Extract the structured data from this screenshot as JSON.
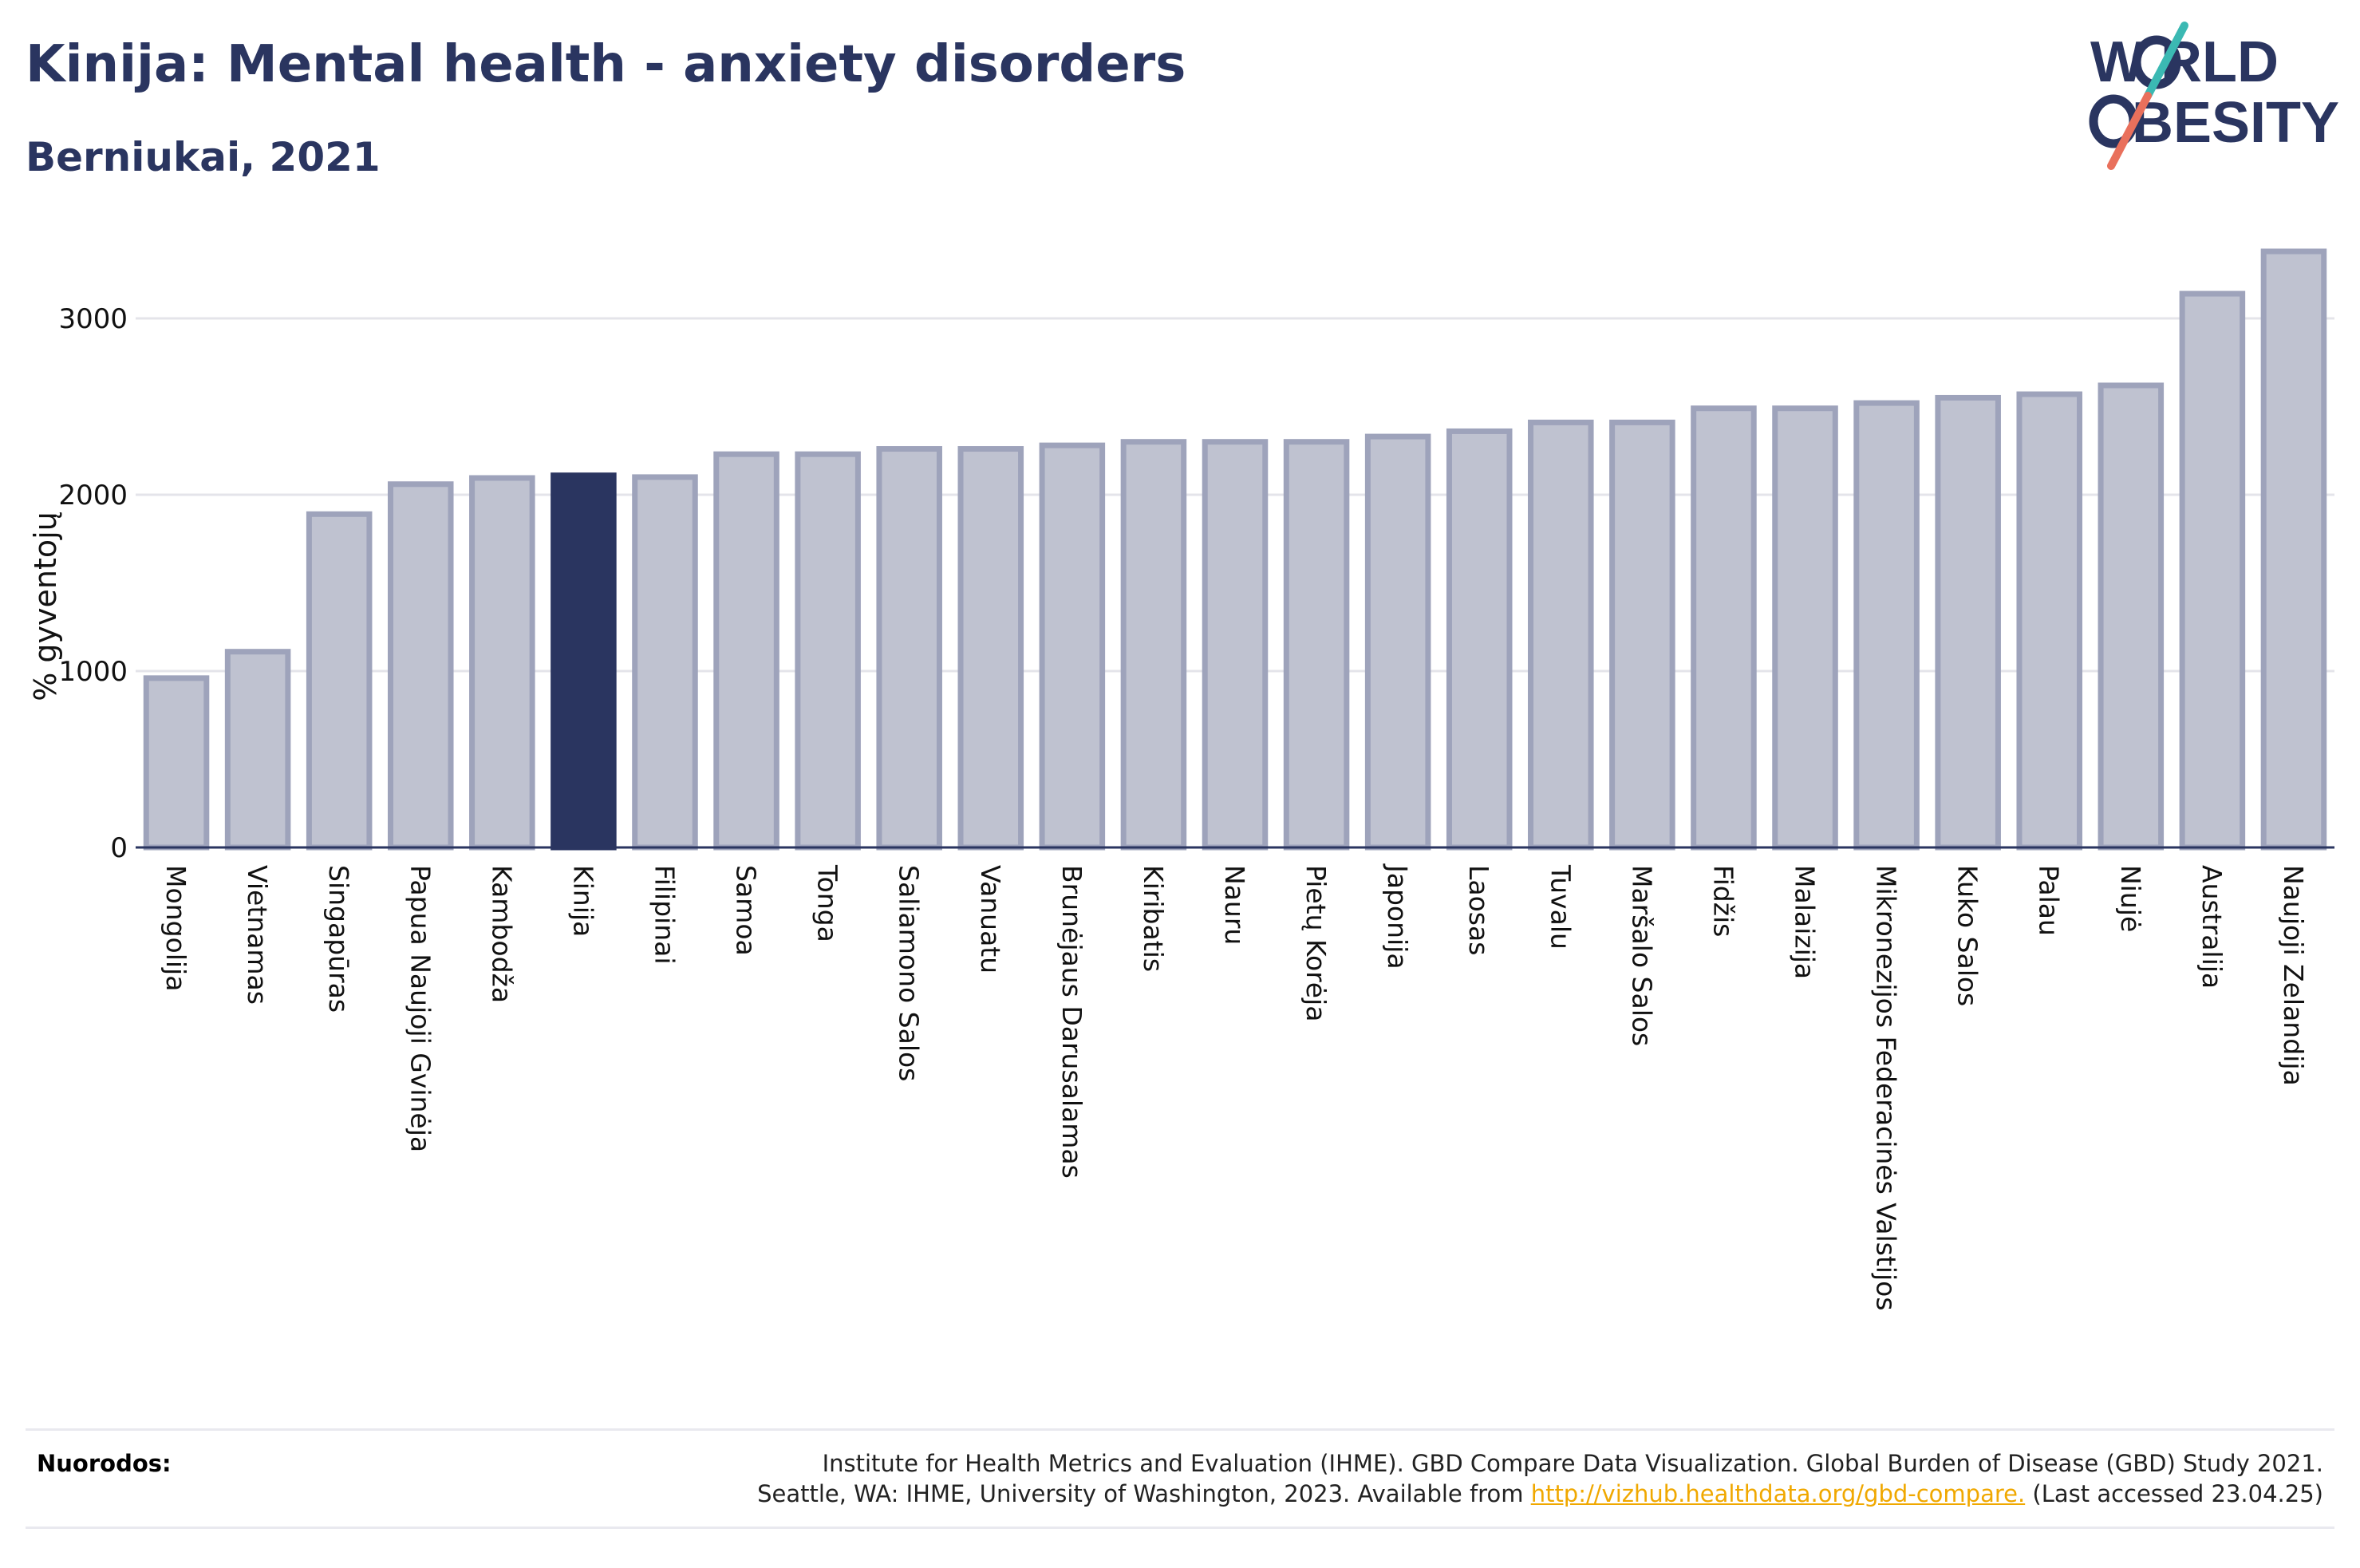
{
  "header": {
    "title": "Kinija: Mental health - anxiety disorders",
    "subtitle": "Berniukai, 2021"
  },
  "logo": {
    "line1": "W RLD",
    "line2": "BESITY",
    "text": "WORLD OBESITY"
  },
  "colors": {
    "bar": "#bfc2d0",
    "bar_stroke": "#9ea3bb",
    "highlight": "#2a3560",
    "grid": "#e4e4ea",
    "logo_slash_top": "#3bb9b3",
    "logo_slash_bottom": "#e9705c"
  },
  "chart_data": {
    "type": "bar",
    "title": "Kinija: Mental health - anxiety disorders",
    "subtitle": "Berniukai, 2021",
    "xlabel": "",
    "ylabel": "% gyventojų",
    "ylim": [
      0,
      3400
    ],
    "yticks": [
      0,
      1000,
      2000,
      3000
    ],
    "grid": true,
    "highlight": "Kinija",
    "categories": [
      "Mongolija",
      "Vietnamas",
      "Singapūras",
      "Papua Naujoji Gvinėja",
      "Kambodža",
      "Kinija",
      "Filipinai",
      "Samoa",
      "Tonga",
      "Saliamono Salos",
      "Vanuatu",
      "Brunėjaus Darusalamas",
      "Kiribatis",
      "Nauru",
      "Pietų Korėja",
      "Japonija",
      "Laosas",
      "Tuvalu",
      "Maršalo Salos",
      "Fidžis",
      "Malaizija",
      "Mikronezijos Federacinės Valstijos",
      "Kuko Salos",
      "Palau",
      "Niujė",
      "Australija",
      "Naujoji Zelandija"
    ],
    "values": [
      960,
      1110,
      1890,
      2060,
      2095,
      2110,
      2100,
      2230,
      2230,
      2260,
      2260,
      2280,
      2300,
      2300,
      2300,
      2330,
      2360,
      2410,
      2410,
      2490,
      2490,
      2520,
      2550,
      2570,
      2620,
      3140,
      3380
    ]
  },
  "footer": {
    "label": "Nuorodos:",
    "line1": "Institute for Health Metrics and Evaluation (IHME). GBD Compare Data Visualization. Global Burden of Disease (GBD) Study 2021.",
    "line2_pre": "Seattle, WA: IHME, University of Washington, 2023. Available from ",
    "link": "http://vizhub.healthdata.org/gbd-compare.",
    "line2_post": " (Last accessed 23.04.25)"
  }
}
